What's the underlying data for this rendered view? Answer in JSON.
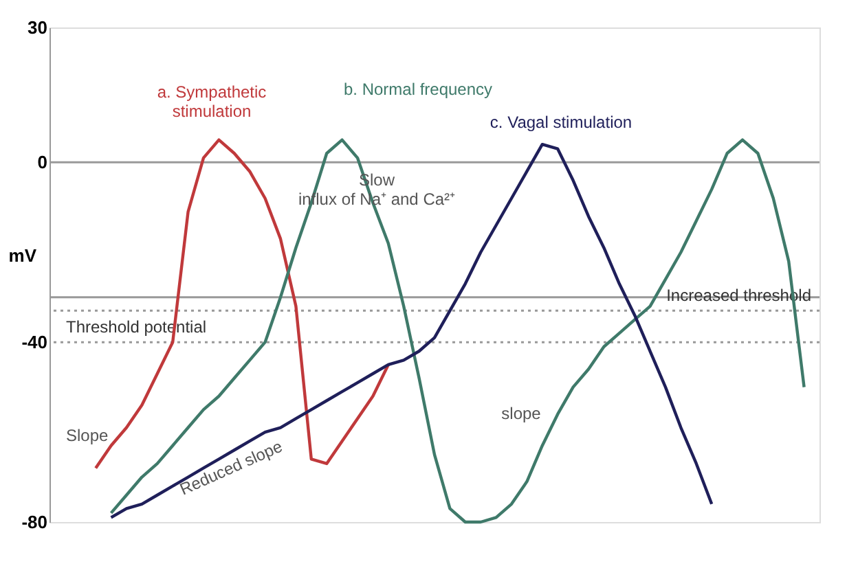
{
  "chart_data": {
    "type": "line",
    "ylabel": "mV",
    "ylim": [
      -80,
      30
    ],
    "yticks": [
      30,
      0,
      -40,
      -80
    ],
    "tick_labels": "y",
    "line_style": "solid",
    "categories": [
      null,
      null,
      null,
      null,
      null,
      null,
      null,
      null,
      null,
      null,
      null,
      null,
      null,
      null,
      null,
      null,
      null,
      null,
      null,
      null,
      null,
      null,
      null,
      null,
      null,
      null,
      null,
      null,
      null,
      null,
      null,
      null,
      null,
      null,
      null,
      null,
      null,
      null,
      null,
      null,
      null,
      null,
      null,
      null,
      null,
      null,
      null,
      null,
      null,
      null,
      null
    ],
    "series": [
      {
        "name": "a. Sympathetic\nstimulation",
        "color": "#c0393b",
        "values": [
          null,
          null,
          null,
          -68,
          -63,
          -59,
          -54,
          -47,
          -40,
          -11,
          1,
          5,
          2,
          -2,
          -8,
          -17,
          -32,
          -66,
          -67,
          -62,
          -57,
          -52,
          -45,
          null,
          null,
          null,
          null,
          null,
          null,
          null,
          null,
          null,
          null,
          null,
          null,
          null,
          null,
          null,
          null,
          null,
          null,
          null,
          null,
          null,
          null,
          null,
          null,
          null,
          null,
          null,
          null
        ]
      },
      {
        "name": "b. Normal frequency",
        "color": "#3f7a6a",
        "values": [
          null,
          null,
          null,
          null,
          -78,
          -74,
          -70,
          -67,
          -63,
          -59,
          -55,
          -52,
          -48,
          -44,
          -40,
          -30,
          -19,
          -9,
          2,
          5,
          1,
          -9,
          -18,
          -32,
          -48,
          -65,
          -77,
          -80,
          -80,
          -79,
          -76,
          -71,
          -63,
          -56,
          -50,
          -46,
          -41,
          -38,
          -35,
          -32,
          -26,
          -20,
          -13,
          -6,
          2,
          5,
          2,
          -8,
          -22,
          -50,
          null
        ]
      },
      {
        "name": "c. Vagal stimulation",
        "color": "#1f1f5a",
        "values": [
          null,
          null,
          null,
          null,
          -79,
          -77,
          -76,
          -74,
          -72,
          -70,
          -68,
          -66,
          -64,
          -62,
          -60,
          -59,
          -57,
          -55,
          -53,
          -51,
          -49,
          -47,
          -45,
          -44,
          -42,
          -39,
          -33,
          -27,
          -20,
          -14,
          -8,
          -2,
          4,
          3,
          -4,
          -12,
          -19,
          -27,
          -34,
          -42,
          -50,
          -59,
          -67,
          -76,
          null,
          null,
          null,
          null,
          null,
          null,
          null
        ]
      }
    ],
    "ref_lines": [
      {
        "axis": "y",
        "value": 0,
        "color": "#999999",
        "line_style": "solid"
      },
      {
        "axis": "y",
        "value": -30,
        "color": "#999999",
        "line_style": "solid"
      },
      {
        "axis": "y",
        "value": -40,
        "label": "Threshold potential",
        "color": "#999999",
        "line_style": "dotted"
      },
      {
        "axis": "y",
        "value": -33,
        "label": "Increased threshold",
        "color": "#999999",
        "line_style": "dotted"
      }
    ],
    "annotations": [
      "Slow\ninflux of Na⁺ and Ca²⁺",
      "Slope",
      "Reduced slope",
      "slope"
    ]
  }
}
